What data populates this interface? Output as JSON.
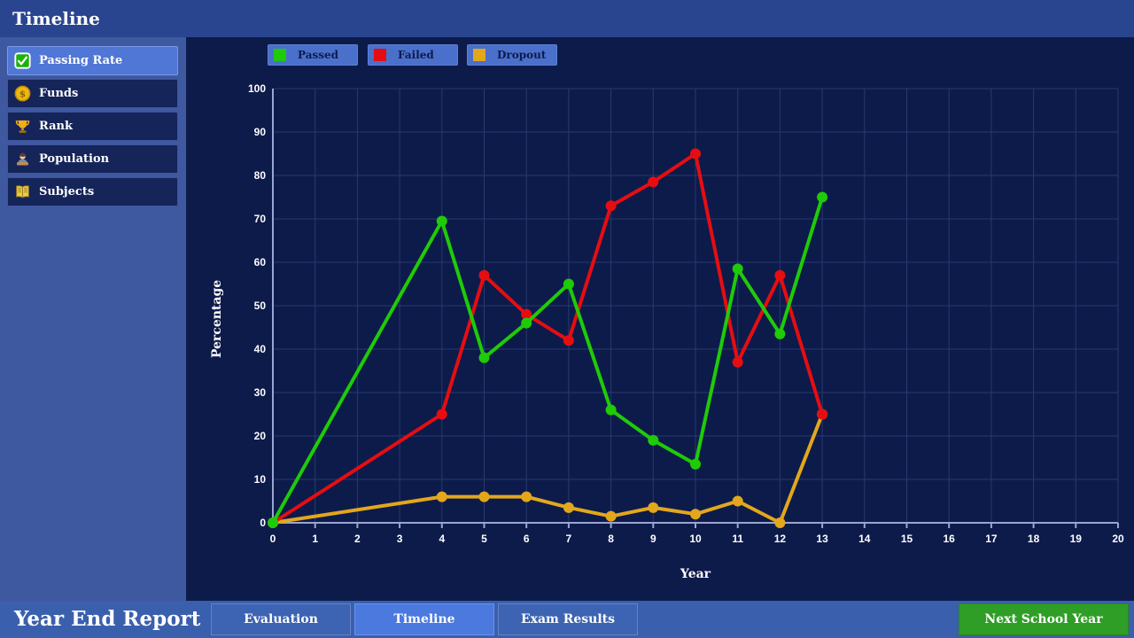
{
  "header": {
    "title": "Timeline"
  },
  "sidebar": {
    "items": [
      {
        "label": "Passing Rate",
        "icon": "checkbox-checked-icon",
        "selected": true
      },
      {
        "label": "Funds",
        "icon": "coin-icon",
        "selected": false
      },
      {
        "label": "Rank",
        "icon": "trophy-icon",
        "selected": false
      },
      {
        "label": "Population",
        "icon": "person-icon",
        "selected": false
      },
      {
        "label": "Subjects",
        "icon": "open-book-icon",
        "selected": false
      }
    ]
  },
  "chart_data": {
    "type": "line",
    "title": "",
    "xlabel": "Year",
    "ylabel": "Percentage",
    "xlim": [
      0,
      20
    ],
    "ylim": [
      0,
      100
    ],
    "x_tick_step": 1,
    "y_tick_step": 10,
    "grid": true,
    "legend_position": "top",
    "x": [
      0,
      4,
      5,
      6,
      7,
      8,
      9,
      10,
      11,
      12,
      13
    ],
    "series": [
      {
        "name": "Passed",
        "color": "#1fcb07",
        "values": [
          0,
          69.5,
          38,
          46,
          55,
          26,
          19,
          13.5,
          58.5,
          43.5,
          75
        ]
      },
      {
        "name": "Failed",
        "color": "#e60d11",
        "values": [
          0,
          25,
          57,
          48,
          42,
          73,
          78.5,
          85,
          37,
          57,
          25
        ]
      },
      {
        "name": "Dropout",
        "color": "#e3a71c",
        "values": [
          0,
          6,
          6,
          6,
          3.5,
          1.5,
          3.5,
          2,
          5,
          0,
          25
        ]
      }
    ]
  },
  "footer": {
    "title": "Year End Report",
    "tabs": [
      {
        "label": "Evaluation",
        "active": false
      },
      {
        "label": "Timeline",
        "active": true
      },
      {
        "label": "Exam Results",
        "active": false
      }
    ],
    "next_button_label": "Next School Year"
  },
  "colors": {
    "top_bar": "#2a4590",
    "sidebar_bg": "#3e59a0",
    "panel_bg": "#0d1b4b",
    "bottom_bar": "#3a5fad",
    "selected_item": "#5076d6",
    "legend_button": "#4a70cc",
    "grid_line": "#263a6f",
    "axis_line": "#9aa6cf",
    "next_button": "#2f9e26"
  }
}
